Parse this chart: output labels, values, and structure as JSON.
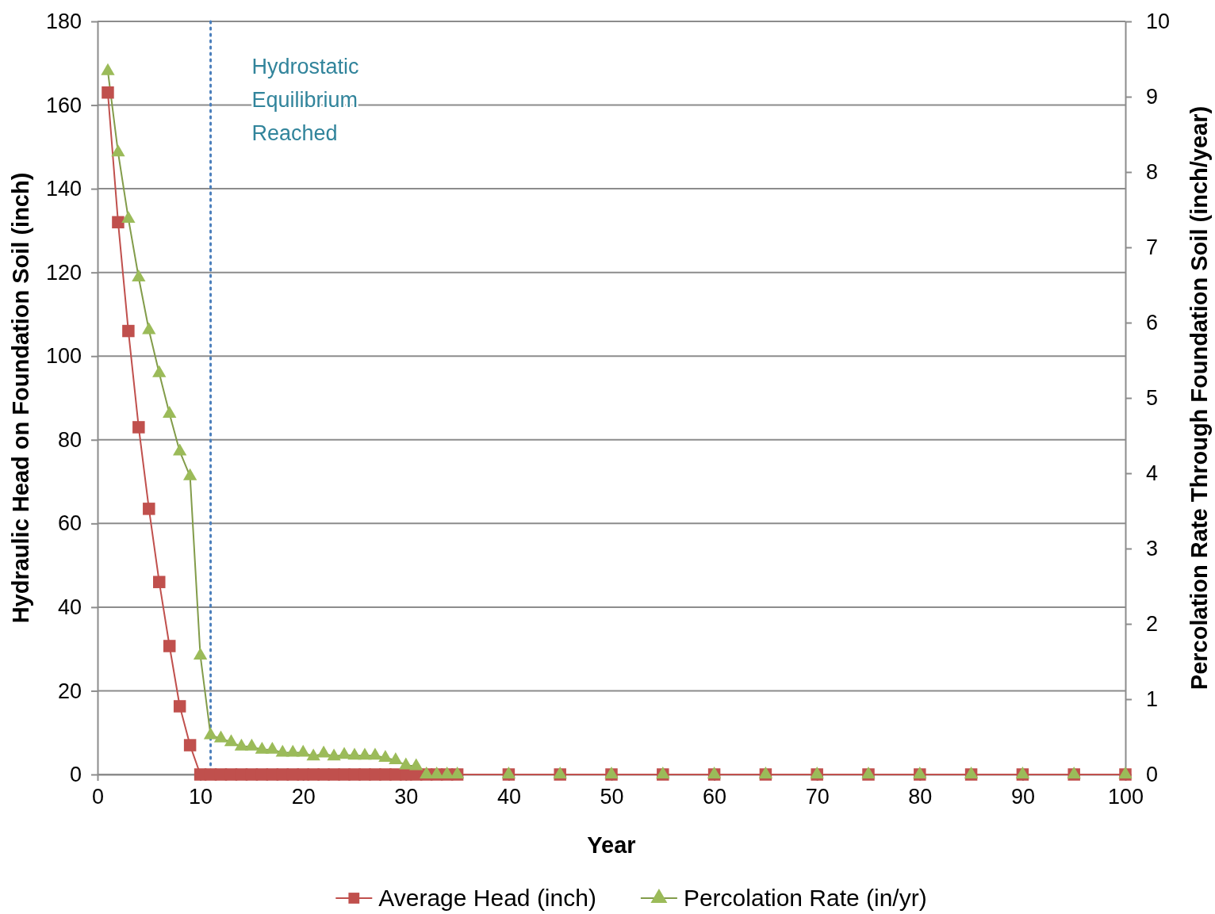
{
  "chart_data": {
    "type": "line",
    "xlabel": "Year",
    "ylabel": "Hydraulic Head on Foundation Soil (inch)",
    "y2label": "Percolation Rate Through  Foundation Soil (inch/year)",
    "x": [
      1,
      2,
      3,
      4,
      5,
      6,
      7,
      8,
      9,
      10,
      11,
      12,
      13,
      14,
      15,
      16,
      17,
      18,
      19,
      20,
      21,
      22,
      23,
      24,
      25,
      26,
      27,
      28,
      29,
      30,
      31,
      32,
      33,
      34,
      35,
      40,
      45,
      50,
      55,
      60,
      65,
      70,
      75,
      80,
      85,
      90,
      95,
      100
    ],
    "series": [
      {
        "name": "Average Head (inch)",
        "color": "#c0504d",
        "marker": "square",
        "values": [
          163,
          132,
          106,
          83,
          63.5,
          46,
          30.7,
          16.3,
          7,
          0,
          0,
          0,
          0,
          0,
          0,
          0,
          0,
          0,
          0,
          0,
          0,
          0,
          0,
          0,
          0,
          0,
          0,
          0,
          0,
          0,
          0,
          0,
          0,
          0,
          0,
          0,
          0,
          0,
          0,
          0,
          0,
          0,
          0,
          0,
          0,
          0,
          0,
          0
        ]
      },
      {
        "name": "Percolation Rate (in/yr)",
        "color": "#9bbb59",
        "marker": "triangle",
        "axis": "y2",
        "values": [
          9.34,
          8.26,
          7.38,
          6.6,
          5.9,
          5.33,
          4.79,
          4.29,
          3.96,
          1.58,
          0.52,
          0.48,
          0.43,
          0.37,
          0.37,
          0.33,
          0.33,
          0.29,
          0.29,
          0.29,
          0.24,
          0.28,
          0.24,
          0.26,
          0.25,
          0.25,
          0.25,
          0.22,
          0.19,
          0.12,
          0.11,
          0,
          0,
          0,
          0,
          0,
          0,
          0,
          0,
          0,
          0,
          0,
          0,
          0,
          0,
          0,
          0,
          0
        ]
      }
    ],
    "xlim": [
      0,
      100
    ],
    "xticks": [
      0,
      10,
      20,
      30,
      40,
      50,
      60,
      70,
      80,
      90,
      100
    ],
    "ylim": [
      0,
      180
    ],
    "yticks": [
      0,
      20,
      40,
      60,
      80,
      100,
      120,
      140,
      160,
      180
    ],
    "y2lim": [
      0,
      10
    ],
    "y2ticks": [
      0,
      1,
      2,
      3,
      4,
      5,
      6,
      7,
      8,
      9,
      10
    ],
    "ref_lines": [
      {
        "axis": "x",
        "value": 11,
        "label": "Hydrostatic Equilibrium Reached",
        "color": "#4a7ebb",
        "line_style": "dotted"
      }
    ],
    "grid": "y",
    "legend": "bottom",
    "line_style": "solid"
  }
}
